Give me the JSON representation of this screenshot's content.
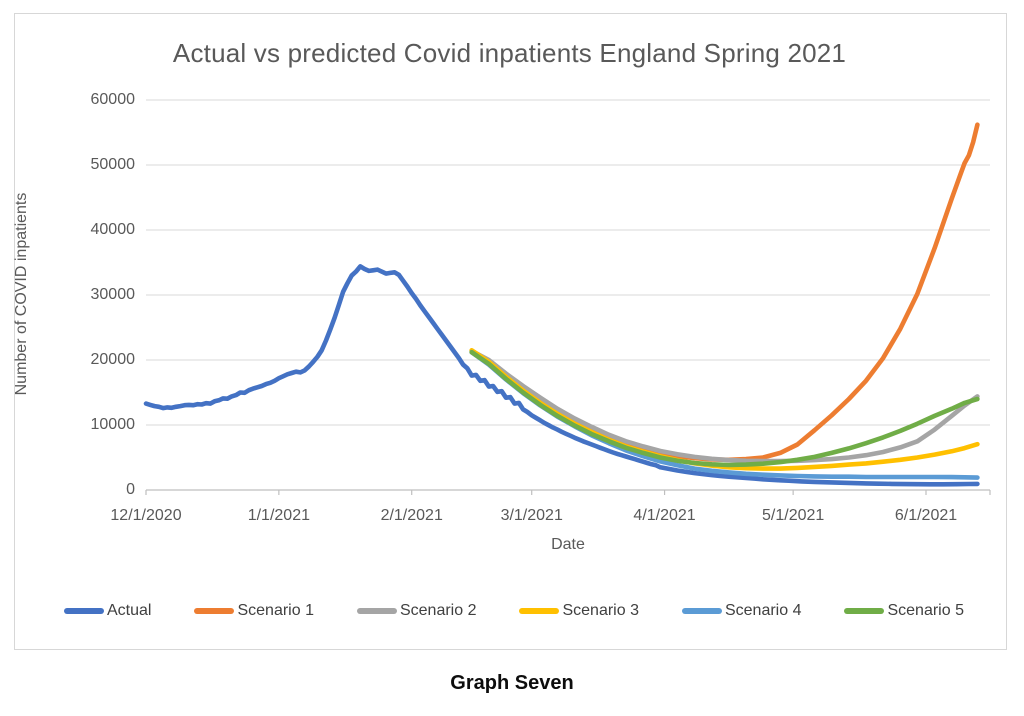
{
  "caption": "Graph Seven",
  "colors": {
    "grid": "#d9d9d9",
    "axis": "#bfbfbf",
    "title_text": "#595959",
    "tick_text": "#595959"
  },
  "chart_data": {
    "type": "line",
    "title": "Actual vs predicted Covid inpatients England Spring 2021",
    "xlabel": "Date",
    "ylabel": "Number of COVID inpatients",
    "grid": "horizontal",
    "legend_position": "bottom",
    "ylim": [
      0,
      60000
    ],
    "y_ticks": [
      0,
      10000,
      20000,
      30000,
      40000,
      50000,
      60000
    ],
    "x_unit": "days since 12/1/2020",
    "x_ticks": [
      {
        "day": 0,
        "label": "12/1/2020"
      },
      {
        "day": 31,
        "label": "1/1/2021"
      },
      {
        "day": 62,
        "label": "2/1/2021"
      },
      {
        "day": 90,
        "label": "3/1/2021"
      },
      {
        "day": 121,
        "label": "4/1/2021"
      },
      {
        "day": 151,
        "label": "5/1/2021"
      },
      {
        "day": 182,
        "label": "6/1/2021"
      }
    ],
    "series": [
      {
        "name": "Actual",
        "color": "#4472C4",
        "points": [
          [
            0,
            13300
          ],
          [
            1,
            13100
          ],
          [
            2,
            12900
          ],
          [
            3,
            12800
          ],
          [
            4,
            12600
          ],
          [
            5,
            12700
          ],
          [
            6,
            12650
          ],
          [
            7,
            12800
          ],
          [
            8,
            12900
          ],
          [
            9,
            13050
          ],
          [
            10,
            13100
          ],
          [
            11,
            13050
          ],
          [
            12,
            13200
          ],
          [
            13,
            13150
          ],
          [
            14,
            13350
          ],
          [
            15,
            13300
          ],
          [
            16,
            13650
          ],
          [
            17,
            13800
          ],
          [
            18,
            14100
          ],
          [
            19,
            14050
          ],
          [
            20,
            14400
          ],
          [
            21,
            14600
          ],
          [
            22,
            15000
          ],
          [
            23,
            14950
          ],
          [
            24,
            15350
          ],
          [
            25,
            15600
          ],
          [
            26,
            15800
          ],
          [
            27,
            16000
          ],
          [
            28,
            16300
          ],
          [
            29,
            16500
          ],
          [
            30,
            16800
          ],
          [
            31,
            17200
          ],
          [
            32,
            17500
          ],
          [
            33,
            17800
          ],
          [
            34,
            18000
          ],
          [
            35,
            18200
          ],
          [
            36,
            18100
          ],
          [
            37,
            18400
          ],
          [
            38,
            19000
          ],
          [
            39,
            19700
          ],
          [
            40,
            20500
          ],
          [
            41,
            21500
          ],
          [
            42,
            23000
          ],
          [
            43,
            24700
          ],
          [
            44,
            26500
          ],
          [
            45,
            28500
          ],
          [
            46,
            30500
          ],
          [
            47,
            31800
          ],
          [
            48,
            33000
          ],
          [
            49,
            33600
          ],
          [
            50,
            34400
          ],
          [
            51,
            34000
          ],
          [
            52,
            33700
          ],
          [
            53,
            33800
          ],
          [
            54,
            33900
          ],
          [
            55,
            33600
          ],
          [
            56,
            33300
          ],
          [
            57,
            33400
          ],
          [
            58,
            33500
          ],
          [
            59,
            33100
          ],
          [
            60,
            32200
          ],
          [
            61,
            31300
          ],
          [
            62,
            30300
          ],
          [
            63,
            29400
          ],
          [
            64,
            28400
          ],
          [
            65,
            27500
          ],
          [
            66,
            26600
          ],
          [
            67,
            25700
          ],
          [
            68,
            24800
          ],
          [
            69,
            23900
          ],
          [
            70,
            23000
          ],
          [
            71,
            22100
          ],
          [
            72,
            21200
          ],
          [
            73,
            20300
          ],
          [
            74,
            19300
          ],
          [
            75,
            18700
          ],
          [
            76,
            17600
          ],
          [
            77,
            17700
          ],
          [
            78,
            16800
          ],
          [
            79,
            16900
          ],
          [
            80,
            15900
          ],
          [
            81,
            16000
          ],
          [
            82,
            15100
          ],
          [
            83,
            15200
          ],
          [
            84,
            14200
          ],
          [
            85,
            14300
          ],
          [
            86,
            13300
          ],
          [
            87,
            13400
          ],
          [
            88,
            12400
          ],
          [
            89,
            12000
          ],
          [
            90,
            11500
          ],
          [
            91,
            11100
          ],
          [
            92,
            10700
          ],
          [
            93,
            10300
          ],
          [
            94,
            9950
          ],
          [
            95,
            9600
          ],
          [
            96,
            9300
          ],
          [
            97,
            8950
          ],
          [
            98,
            8650
          ],
          [
            99,
            8350
          ],
          [
            100,
            8050
          ],
          [
            101,
            7770
          ],
          [
            102,
            7500
          ],
          [
            103,
            7250
          ],
          [
            104,
            7000
          ],
          [
            105,
            6750
          ],
          [
            106,
            6500
          ],
          [
            107,
            6250
          ],
          [
            108,
            6000
          ],
          [
            109,
            5770
          ],
          [
            110,
            5550
          ],
          [
            111,
            5350
          ],
          [
            112,
            5150
          ],
          [
            113,
            4950
          ],
          [
            114,
            4750
          ],
          [
            115,
            4550
          ],
          [
            116,
            4350
          ],
          [
            117,
            4150
          ],
          [
            118,
            3950
          ],
          [
            119,
            3800
          ],
          [
            120,
            3500
          ],
          [
            122,
            3250
          ],
          [
            124,
            3000
          ],
          [
            126,
            2800
          ],
          [
            128,
            2600
          ],
          [
            130,
            2450
          ],
          [
            132,
            2300
          ],
          [
            134,
            2150
          ],
          [
            136,
            2050
          ],
          [
            138,
            1950
          ],
          [
            140,
            1850
          ],
          [
            142,
            1750
          ],
          [
            144,
            1650
          ],
          [
            146,
            1570
          ],
          [
            148,
            1500
          ],
          [
            150,
            1430
          ],
          [
            153,
            1330
          ],
          [
            156,
            1250
          ],
          [
            159,
            1180
          ],
          [
            162,
            1120
          ],
          [
            165,
            1060
          ],
          [
            168,
            1010
          ],
          [
            171,
            970
          ],
          [
            174,
            940
          ],
          [
            177,
            915
          ],
          [
            180,
            895
          ],
          [
            183,
            880
          ],
          [
            186,
            880
          ],
          [
            189,
            895
          ],
          [
            192,
            920
          ],
          [
            194,
            945
          ]
        ]
      },
      {
        "name": "Scenario 1",
        "color": "#ED7D31",
        "points": [
          [
            76,
            21400
          ],
          [
            80,
            19500
          ],
          [
            84,
            17300
          ],
          [
            88,
            15300
          ],
          [
            92,
            13500
          ],
          [
            96,
            11900
          ],
          [
            100,
            10400
          ],
          [
            104,
            9100
          ],
          [
            108,
            8000
          ],
          [
            112,
            7000
          ],
          [
            116,
            6200
          ],
          [
            120,
            5600
          ],
          [
            124,
            5200
          ],
          [
            128,
            4900
          ],
          [
            132,
            4700
          ],
          [
            136,
            4650
          ],
          [
            140,
            4750
          ],
          [
            144,
            5000
          ],
          [
            148,
            5700
          ],
          [
            152,
            7000
          ],
          [
            156,
            9200
          ],
          [
            160,
            11500
          ],
          [
            164,
            14000
          ],
          [
            168,
            16800
          ],
          [
            172,
            20300
          ],
          [
            176,
            24800
          ],
          [
            180,
            30200
          ],
          [
            184,
            37200
          ],
          [
            188,
            44800
          ],
          [
            190,
            48500
          ],
          [
            191,
            50300
          ],
          [
            192,
            51500
          ],
          [
            193,
            53500
          ],
          [
            194,
            56200
          ]
        ]
      },
      {
        "name": "Scenario 2",
        "color": "#A5A5A5",
        "points": [
          [
            76,
            21400
          ],
          [
            80,
            20000
          ],
          [
            84,
            17900
          ],
          [
            88,
            16000
          ],
          [
            92,
            14200
          ],
          [
            96,
            12500
          ],
          [
            100,
            11000
          ],
          [
            104,
            9700
          ],
          [
            108,
            8500
          ],
          [
            112,
            7500
          ],
          [
            116,
            6700
          ],
          [
            120,
            6000
          ],
          [
            124,
            5500
          ],
          [
            128,
            5100
          ],
          [
            132,
            4800
          ],
          [
            136,
            4600
          ],
          [
            140,
            4500
          ],
          [
            144,
            4450
          ],
          [
            148,
            4450
          ],
          [
            152,
            4500
          ],
          [
            156,
            4600
          ],
          [
            160,
            4750
          ],
          [
            164,
            5000
          ],
          [
            168,
            5350
          ],
          [
            172,
            5850
          ],
          [
            176,
            6550
          ],
          [
            180,
            7500
          ],
          [
            184,
            9300
          ],
          [
            188,
            11400
          ],
          [
            191,
            13000
          ],
          [
            194,
            14400
          ]
        ]
      },
      {
        "name": "Scenario 3",
        "color": "#FFC000",
        "points": [
          [
            76,
            21500
          ],
          [
            80,
            19700
          ],
          [
            84,
            17400
          ],
          [
            88,
            15300
          ],
          [
            92,
            13400
          ],
          [
            96,
            11700
          ],
          [
            100,
            10200
          ],
          [
            104,
            8900
          ],
          [
            108,
            7700
          ],
          [
            112,
            6700
          ],
          [
            116,
            5900
          ],
          [
            120,
            5200
          ],
          [
            124,
            4600
          ],
          [
            128,
            4100
          ],
          [
            132,
            3750
          ],
          [
            136,
            3500
          ],
          [
            140,
            3350
          ],
          [
            144,
            3300
          ],
          [
            148,
            3300
          ],
          [
            152,
            3400
          ],
          [
            156,
            3550
          ],
          [
            160,
            3700
          ],
          [
            164,
            3900
          ],
          [
            168,
            4100
          ],
          [
            172,
            4350
          ],
          [
            176,
            4650
          ],
          [
            180,
            5000
          ],
          [
            184,
            5450
          ],
          [
            188,
            5950
          ],
          [
            191,
            6450
          ],
          [
            194,
            7050
          ]
        ]
      },
      {
        "name": "Scenario 4",
        "color": "#5B9BD5",
        "points": [
          [
            76,
            21200
          ],
          [
            80,
            19300
          ],
          [
            84,
            17000
          ],
          [
            88,
            14900
          ],
          [
            92,
            13000
          ],
          [
            96,
            11300
          ],
          [
            100,
            9800
          ],
          [
            104,
            8400
          ],
          [
            108,
            7200
          ],
          [
            112,
            6100
          ],
          [
            116,
            5200
          ],
          [
            120,
            4400
          ],
          [
            124,
            3800
          ],
          [
            128,
            3300
          ],
          [
            132,
            2950
          ],
          [
            136,
            2700
          ],
          [
            140,
            2500
          ],
          [
            144,
            2350
          ],
          [
            148,
            2250
          ],
          [
            152,
            2150
          ],
          [
            156,
            2100
          ],
          [
            160,
            2050
          ],
          [
            164,
            2050
          ],
          [
            168,
            2000
          ],
          [
            172,
            2000
          ],
          [
            176,
            2000
          ],
          [
            180,
            2000
          ],
          [
            184,
            2000
          ],
          [
            188,
            1980
          ],
          [
            191,
            1950
          ],
          [
            194,
            1900
          ]
        ]
      },
      {
        "name": "Scenario 5",
        "color": "#70AD47",
        "points": [
          [
            76,
            21200
          ],
          [
            80,
            19400
          ],
          [
            84,
            17100
          ],
          [
            88,
            15000
          ],
          [
            92,
            13100
          ],
          [
            96,
            11400
          ],
          [
            100,
            9900
          ],
          [
            104,
            8600
          ],
          [
            108,
            7500
          ],
          [
            112,
            6500
          ],
          [
            116,
            5700
          ],
          [
            120,
            5000
          ],
          [
            124,
            4500
          ],
          [
            128,
            4150
          ],
          [
            132,
            3950
          ],
          [
            136,
            3850
          ],
          [
            140,
            3900
          ],
          [
            144,
            4050
          ],
          [
            148,
            4300
          ],
          [
            152,
            4650
          ],
          [
            156,
            5100
          ],
          [
            160,
            5700
          ],
          [
            164,
            6400
          ],
          [
            168,
            7200
          ],
          [
            172,
            8100
          ],
          [
            176,
            9100
          ],
          [
            180,
            10200
          ],
          [
            184,
            11400
          ],
          [
            188,
            12500
          ],
          [
            191,
            13400
          ],
          [
            194,
            14000
          ]
        ]
      }
    ]
  }
}
